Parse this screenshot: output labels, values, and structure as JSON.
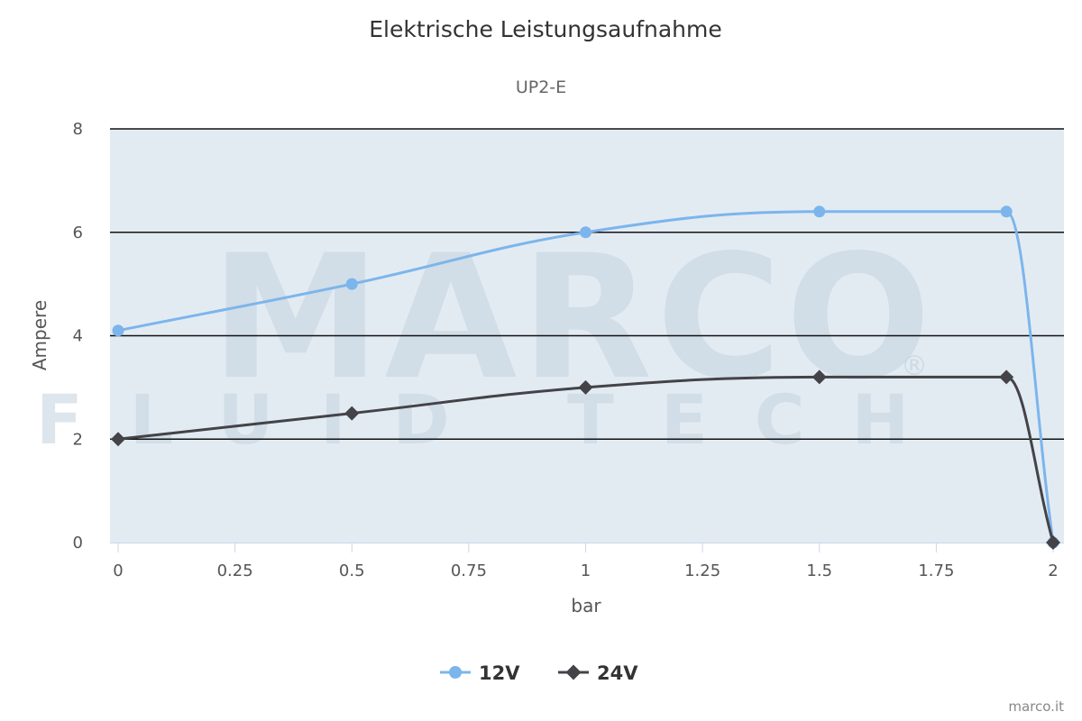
{
  "chart_data": {
    "type": "line",
    "title": "Elektrische Leistungsaufnahme",
    "subtitle": "UP2-E",
    "xlabel": "bar",
    "ylabel": "Ampere",
    "xlim": [
      0,
      2
    ],
    "ylim": [
      0,
      8
    ],
    "x_ticks": [
      "0",
      "0.25",
      "0.5",
      "0.75",
      "1",
      "1.25",
      "1.5",
      "1.75",
      "2"
    ],
    "y_ticks": [
      "0",
      "2",
      "4",
      "6",
      "8"
    ],
    "grid": true,
    "legend_position": "bottom-center",
    "series": [
      {
        "name": "12V",
        "color": "#7cb5ec",
        "marker": "circle",
        "points": [
          [
            0,
            4.1
          ],
          [
            0.5,
            5.0
          ],
          [
            1,
            6.0
          ],
          [
            1.5,
            6.4
          ],
          [
            1.9,
            6.4
          ],
          [
            2,
            0
          ]
        ]
      },
      {
        "name": "24V",
        "color": "#434348",
        "marker": "diamond",
        "points": [
          [
            0,
            2.0
          ],
          [
            0.5,
            2.5
          ],
          [
            1,
            3.0
          ],
          [
            1.5,
            3.2
          ],
          [
            1.9,
            3.2
          ],
          [
            2,
            0
          ]
        ]
      }
    ]
  },
  "watermark": {
    "main": "MARCO",
    "sub": "FLUID TECH",
    "reg": "®"
  },
  "credit": "marco.it"
}
